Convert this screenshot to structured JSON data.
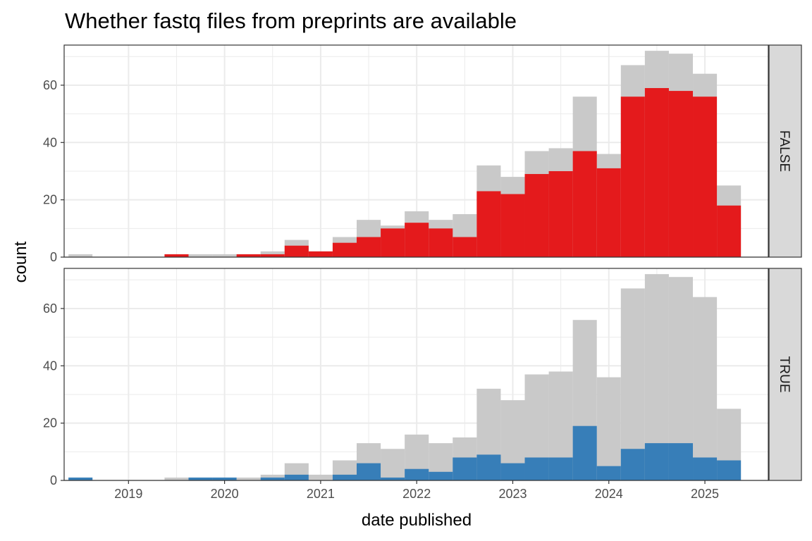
{
  "chart_data": {
    "type": "bar",
    "title": "Whether fastq files from preprints are available",
    "xlabel": "date published",
    "ylabel": "count",
    "x_tick_labels": [
      "2019",
      "2020",
      "2021",
      "2022",
      "2023",
      "2024",
      "2025"
    ],
    "x_ticks": [
      2019,
      2020,
      2021,
      2022,
      2023,
      2024,
      2025
    ],
    "y_tick_labels": [
      "0",
      "20",
      "40",
      "60"
    ],
    "y_ticks": [
      0,
      20,
      40,
      60
    ],
    "ylim": [
      0,
      74
    ],
    "xlim": [
      2018.33,
      2025.66
    ],
    "grid": true,
    "bin_width_years": 0.25,
    "bins": [
      2018.5,
      2018.75,
      2019.0,
      2019.25,
      2019.5,
      2019.75,
      2020.0,
      2020.25,
      2020.5,
      2020.75,
      2021.0,
      2021.25,
      2021.5,
      2021.75,
      2022.0,
      2022.25,
      2022.5,
      2022.75,
      2023.0,
      2023.25,
      2023.5,
      2023.75,
      2024.0,
      2024.25,
      2024.5,
      2024.75,
      2025.0,
      2025.25
    ],
    "total_counts": [
      1,
      0,
      0,
      0,
      1,
      1,
      1,
      1,
      2,
      6,
      2,
      7,
      13,
      11,
      16,
      13,
      15,
      32,
      28,
      37,
      38,
      56,
      36,
      67,
      72,
      71,
      64,
      25
    ],
    "colors": {
      "total": "#c9c9c9",
      "FALSE": "#e41a1c",
      "TRUE": "#377eb8",
      "strip_bg": "#d9d9d9",
      "grid": "#ebebeb"
    },
    "panels": [
      {
        "strip_label": "FALSE",
        "name": "FALSE",
        "values": [
          0,
          0,
          0,
          0,
          1,
          0,
          0,
          1,
          1,
          4,
          2,
          5,
          7,
          10,
          12,
          10,
          7,
          23,
          22,
          29,
          30,
          37,
          31,
          56,
          59,
          58,
          56,
          18
        ]
      },
      {
        "strip_label": "TRUE",
        "name": "TRUE",
        "values": [
          1,
          0,
          0,
          0,
          0,
          1,
          1,
          0,
          1,
          2,
          0,
          2,
          6,
          1,
          4,
          3,
          8,
          9,
          6,
          8,
          8,
          19,
          5,
          11,
          13,
          13,
          8,
          7
        ]
      }
    ]
  }
}
